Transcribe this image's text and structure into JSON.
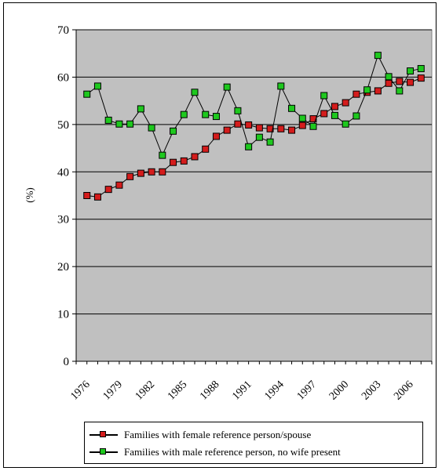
{
  "chart_data": {
    "type": "line",
    "title": "",
    "xlabel": "",
    "ylabel": "(%)",
    "ylim": [
      0,
      70
    ],
    "yticks": [
      0,
      10,
      20,
      30,
      40,
      50,
      60,
      70
    ],
    "xlim": [
      1976,
      2009
    ],
    "xticks": [
      1976,
      1979,
      1982,
      1985,
      1988,
      1991,
      1994,
      1997,
      2000,
      2003,
      2006
    ],
    "xtick_labels": [
      "1976",
      "1979",
      "1982",
      "1985",
      "1988",
      "1991",
      "1994",
      "1997",
      "2000",
      "2003",
      "2006"
    ],
    "grid": "horizontal",
    "plot_background": "#c0c0c0",
    "legend_position": "bottom",
    "x": [
      1977,
      1978,
      1979,
      1980,
      1981,
      1982,
      1983,
      1984,
      1985,
      1986,
      1987,
      1988,
      1989,
      1990,
      1991,
      1992,
      1993,
      1994,
      1995,
      1996,
      1997,
      1998,
      1999,
      2000,
      2001,
      2002,
      2003,
      2004,
      2005,
      2006,
      2007,
      2008
    ],
    "series": [
      {
        "name": "Families with female reference person/spouse",
        "color": "#d41c1c",
        "values": [
          35.0,
          34.7,
          36.3,
          37.2,
          39.0,
          39.7,
          40.0,
          40.0,
          42.0,
          42.3,
          43.2,
          44.8,
          47.5,
          48.8,
          50.1,
          49.9,
          49.3,
          49.1,
          49.1,
          48.8,
          49.8,
          51.2,
          52.3,
          53.8,
          54.6,
          56.4,
          56.8,
          57.1,
          58.7,
          59.1,
          58.9,
          59.8
        ]
      },
      {
        "name": "Families with male reference person, no wife present",
        "color": "#1ec81e",
        "values": [
          56.4,
          58.1,
          50.9,
          50.1,
          50.1,
          53.3,
          49.3,
          43.5,
          48.6,
          52.1,
          56.8,
          52.1,
          51.7,
          57.9,
          52.9,
          45.3,
          47.3,
          46.3,
          58.1,
          53.4,
          51.3,
          49.6,
          56.1,
          51.9,
          50.1,
          51.8,
          57.3,
          64.6,
          60.1,
          57.1,
          61.3,
          61.8
        ]
      }
    ]
  }
}
